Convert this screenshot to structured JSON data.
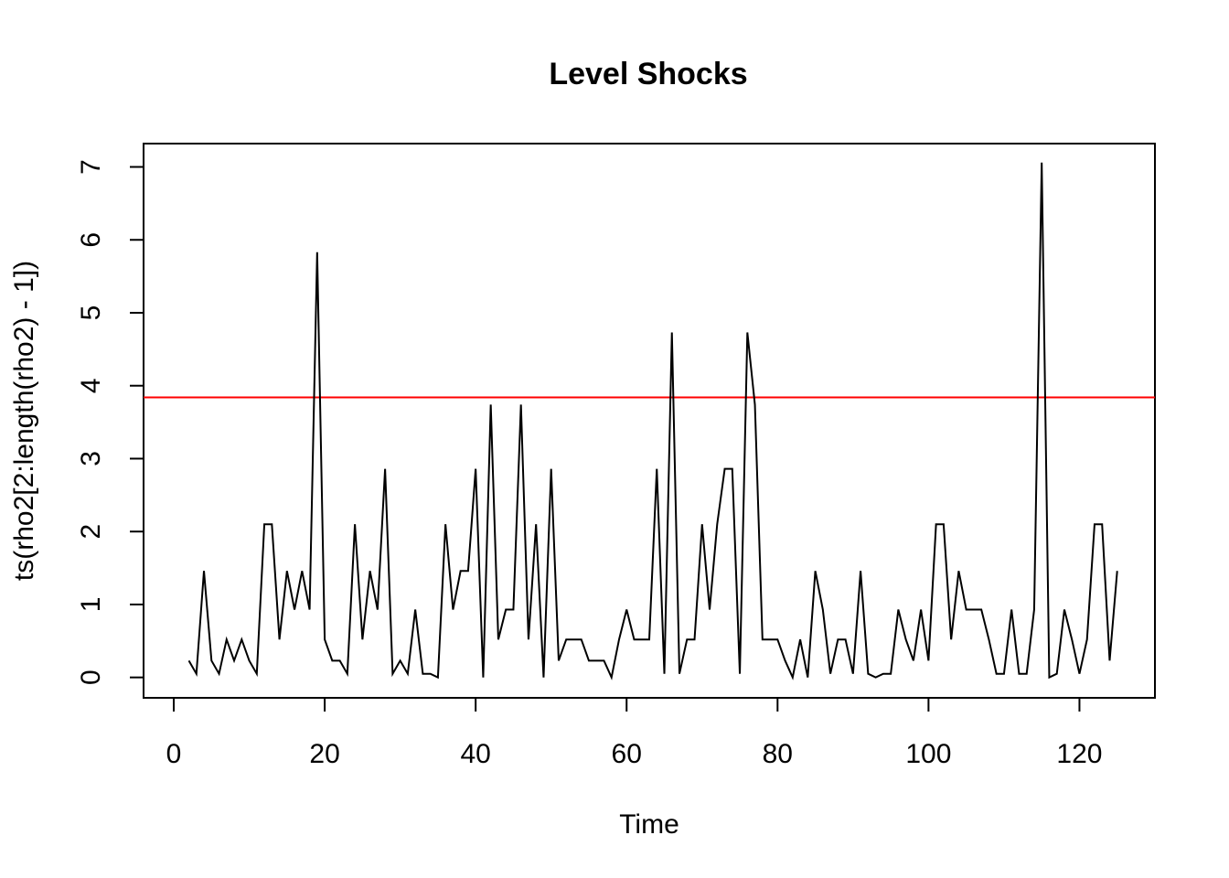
{
  "chart_data": {
    "type": "line",
    "title": "Level Shocks",
    "xlabel": "Time",
    "ylabel": "ts(rho2[2:length(rho2) - 1])",
    "xlim": [
      -4,
      130
    ],
    "ylim": [
      -0.28,
      7.32
    ],
    "xticks": [
      0,
      20,
      40,
      60,
      80,
      100,
      120
    ],
    "yticks": [
      0,
      1,
      2,
      3,
      4,
      5,
      6,
      7
    ],
    "x_start": 2,
    "series": [
      {
        "color": "#000000",
        "values": [
          0.23,
          0.05,
          1.46,
          0.23,
          0.05,
          0.52,
          0.23,
          0.52,
          0.23,
          0.05,
          2.1,
          2.1,
          0.52,
          1.46,
          0.93,
          1.46,
          0.93,
          5.83,
          0.52,
          0.23,
          0.23,
          0.05,
          2.1,
          0.52,
          1.46,
          0.93,
          2.86,
          0.05,
          0.23,
          0.05,
          0.93,
          0.05,
          0.05,
          0.0,
          2.1,
          0.93,
          1.46,
          1.46,
          2.86,
          0.0,
          3.74,
          0.52,
          0.93,
          0.93,
          3.74,
          0.52,
          2.1,
          0.0,
          2.86,
          0.23,
          0.52,
          0.52,
          0.52,
          0.23,
          0.23,
          0.23,
          0.0,
          0.52,
          0.93,
          0.52,
          0.52,
          0.52,
          2.86,
          0.05,
          4.73,
          0.05,
          0.52,
          0.52,
          2.1,
          0.93,
          2.1,
          2.86,
          2.86,
          0.05,
          4.73,
          3.74,
          0.52,
          0.52,
          0.52,
          0.23,
          0.0,
          0.52,
          0.0,
          1.46,
          0.93,
          0.05,
          0.52,
          0.52,
          0.05,
          1.46,
          0.05,
          0.0,
          0.05,
          0.05,
          0.93,
          0.52,
          0.23,
          0.93,
          0.23,
          2.1,
          2.1,
          0.52,
          1.46,
          0.93,
          0.93,
          0.93,
          0.52,
          0.05,
          0.05,
          0.93,
          0.05,
          0.05,
          0.93,
          7.06,
          0.0,
          0.05,
          0.93,
          0.52,
          0.05,
          0.52,
          2.1,
          2.1,
          0.23,
          1.46
        ]
      }
    ],
    "hlines": [
      {
        "y": 3.84,
        "color": "#ff0000"
      }
    ]
  }
}
